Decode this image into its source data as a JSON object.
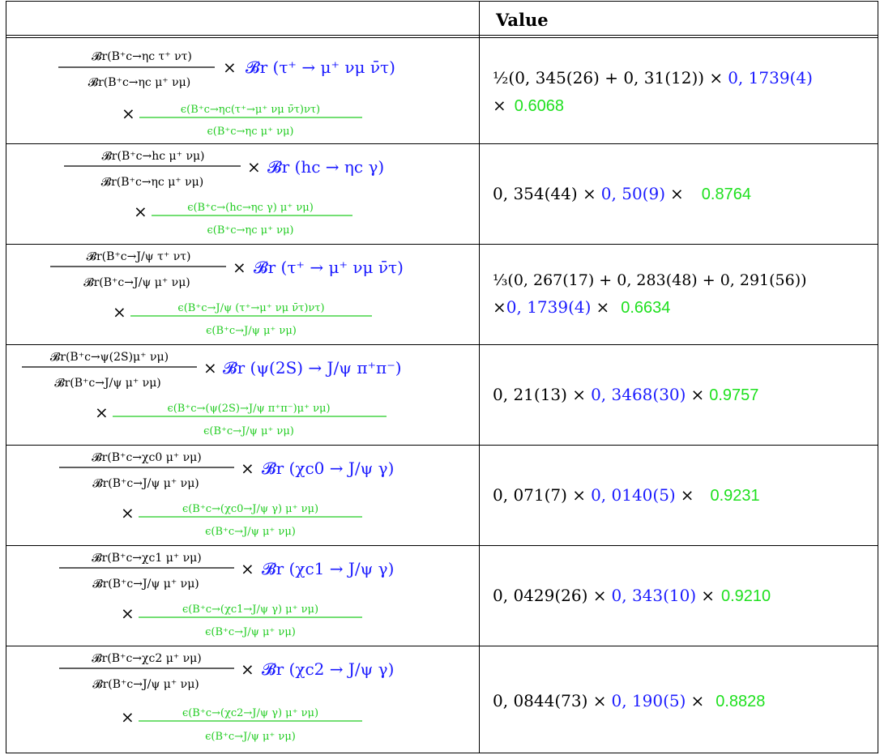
{
  "table": {
    "header": {
      "formula": "",
      "value": "Value"
    },
    "rows": [
      {
        "ratio_num": "𝓑r(B⁺c→ηc τ⁺ ντ)",
        "ratio_den": "𝓑r(B⁺c→ηc μ⁺ νμ)",
        "br": "𝓑r (τ⁺ → μ⁺ νμ ν̄τ)",
        "eff_num": "ϵ(B⁺c→ηc(τ⁺→μ⁺ νμ ν̄τ)ντ)",
        "eff_den": "ϵ(B⁺c→ηc μ⁺ νμ)",
        "value_line1": "½(0, 345(26) + 0, 31(12)) ×",
        "value_br": "0, 1739(4)",
        "value_line2": "×",
        "value_eff": "0.6068"
      },
      {
        "ratio_num": "𝓑r(B⁺c→hc μ⁺ νμ)",
        "ratio_den": "𝓑r(B⁺c→ηc μ⁺ νμ)",
        "br": "𝓑r (hc → ηc γ)",
        "eff_num": "ϵ(B⁺c→(hc→ηc γ) μ⁺ νμ)",
        "eff_den": "ϵ(B⁺c→ηc μ⁺ νμ)",
        "value_line1": "0, 354(44) ×",
        "value_br": "0, 50(9)",
        "value_line2": "×",
        "value_eff": "0.8764"
      },
      {
        "ratio_num": "𝓑r(B⁺c→J/ψ τ⁺ ντ)",
        "ratio_den": "𝓑r(B⁺c→J/ψ μ⁺ νμ)",
        "br": "𝓑r (τ⁺ → μ⁺ νμ ν̄τ)",
        "eff_num": "ϵ(B⁺c→J/ψ (τ⁺→μ⁺ νμ ν̄τ)ντ)",
        "eff_den": "ϵ(B⁺c→J/ψ μ⁺ νμ)",
        "value_line1": "⅓(0, 267(17) + 0, 283(48) + 0, 291(56))",
        "value_line2": "×",
        "value_br": "0, 1739(4)",
        "value_line3": "×",
        "value_eff": "0.6634"
      },
      {
        "ratio_num": "𝓑r(B⁺c→ψ(2S)μ⁺ νμ)",
        "ratio_den": "𝓑r(B⁺c→J/ψ μ⁺ νμ)",
        "br": "𝓑r (ψ(2S) → J/ψ π⁺π⁻)",
        "eff_num": "ϵ(B⁺c→(ψ(2S)→J/ψ π⁺π⁻)μ⁺ νμ)",
        "eff_den": "ϵ(B⁺c→J/ψ μ⁺ νμ)",
        "value_line1": "0, 21(13) ×",
        "value_br": "0, 3468(30)",
        "value_line2": "×",
        "value_eff": "0.9757"
      },
      {
        "ratio_num": "𝓑r(B⁺c→χc0 μ⁺ νμ)",
        "ratio_den": "𝓑r(B⁺c→J/ψ μ⁺ νμ)",
        "br": "𝓑r (χc0 → J/ψ γ)",
        "eff_num": "ϵ(B⁺c→(χc0→J/ψ γ) μ⁺ νμ)",
        "eff_den": "ϵ(B⁺c→J/ψ μ⁺ νμ)",
        "value_line1": "0, 071(7) ×",
        "value_br": "0, 0140(5)",
        "value_line2": "×",
        "value_eff": "0.9231"
      },
      {
        "ratio_num": "𝓑r(B⁺c→χc1 μ⁺ νμ)",
        "ratio_den": "𝓑r(B⁺c→J/ψ μ⁺ νμ)",
        "br": "𝓑r (χc1 → J/ψ γ)",
        "eff_num": "ϵ(B⁺c→(χc1→J/ψ γ) μ⁺ νμ)",
        "eff_den": "ϵ(B⁺c→J/ψ μ⁺ νμ)",
        "value_line1": "0, 0429(26) ×",
        "value_br": "0, 343(10)",
        "value_line2": "×",
        "value_eff": "0.9210"
      },
      {
        "ratio_num": "𝓑r(B⁺c→χc2 μ⁺ νμ)",
        "ratio_den": "𝓑r(B⁺c→J/ψ μ⁺ νμ)",
        "br": "𝓑r (χc2 → J/ψ γ)",
        "eff_num": "ϵ(B⁺c→(χc2→J/ψ γ) μ⁺ νμ)",
        "eff_den": "ϵ(B⁺c→J/ψ μ⁺ νμ)",
        "value_line1": "0, 0844(73) ×",
        "value_br": "0, 190(5)",
        "value_line2": "×",
        "value_eff": "0.8828"
      }
    ]
  },
  "colors": {
    "branching_ratio": "#1a1aff",
    "efficiency": "#22cc22",
    "text": "#000000"
  }
}
